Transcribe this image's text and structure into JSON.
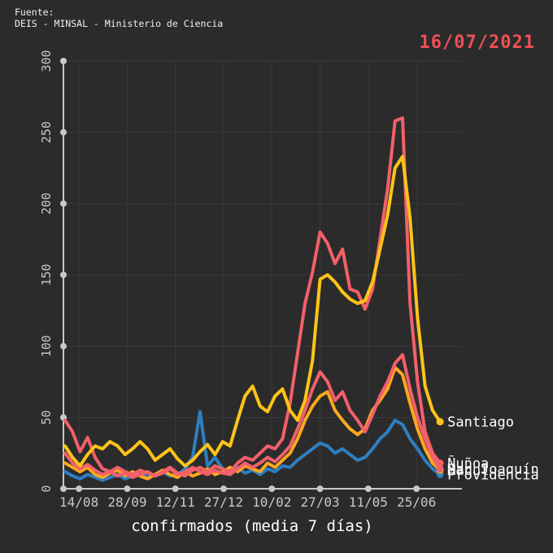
{
  "header": {
    "source_label": "Fuente:",
    "source_name": "DEIS - MINSAL - Ministerio de Ciencia",
    "date": "16/07/2021"
  },
  "colors": {
    "background": "#2b2b2b",
    "grid": "#3a3a3a",
    "axis": "#c8c8c8",
    "tick_text": "#c8c8c8",
    "date_text": "#ef4f55",
    "label_text": "#ffffff"
  },
  "chart_data": {
    "type": "line",
    "title": "",
    "xlabel": "confirmados (media 7 días)",
    "ylabel": "",
    "ylim": [
      0,
      300
    ],
    "y_ticks": [
      0,
      50,
      100,
      150,
      200,
      250,
      300
    ],
    "x_tick_labels": [
      "14/08",
      "28/09",
      "12/11",
      "27/12",
      "10/02",
      "27/03",
      "11/05",
      "25/06"
    ],
    "x_tick_days": [
      13,
      58,
      103,
      148,
      193,
      238,
      283,
      328
    ],
    "x_total_days": 350,
    "sampling_step_days": 7,
    "grid": "on",
    "legend_position": "end-of-line labels (right)",
    "series": [
      {
        "name": "Santiago",
        "color": "#ffc417",
        "values": [
          30,
          22,
          16,
          24,
          30,
          28,
          33,
          30,
          24,
          28,
          33,
          28,
          20,
          24,
          28,
          21,
          16,
          20,
          26,
          31,
          24,
          33,
          30,
          48,
          65,
          72,
          58,
          54,
          65,
          70,
          55,
          48,
          62,
          90,
          147,
          150,
          145,
          138,
          133,
          130,
          132,
          145,
          168,
          192,
          225,
          233,
          190,
          120,
          72,
          55,
          47
        ]
      },
      {
        "name": "Ñuñoa",
        "color": "#f2606a",
        "values": [
          48,
          40,
          26,
          36,
          22,
          14,
          12,
          15,
          12,
          10,
          13,
          11,
          9,
          12,
          15,
          11,
          9,
          13,
          15,
          12,
          16,
          14,
          12,
          18,
          22,
          20,
          25,
          30,
          28,
          35,
          60,
          95,
          130,
          152,
          180,
          172,
          158,
          168,
          140,
          138,
          126,
          140,
          175,
          210,
          258,
          260,
          130,
          75,
          40,
          25,
          18
        ]
      },
      {
        "name": "San Joaquín",
        "color": "#f2606a",
        "values": [
          25,
          18,
          14,
          17,
          13,
          10,
          12,
          9,
          11,
          8,
          10,
          12,
          9,
          11,
          14,
          10,
          12,
          15,
          12,
          10,
          13,
          11,
          10,
          14,
          18,
          15,
          18,
          22,
          19,
          24,
          30,
          42,
          55,
          70,
          82,
          75,
          62,
          68,
          55,
          48,
          40,
          52,
          65,
          75,
          88,
          94,
          70,
          50,
          35,
          22,
          14
        ]
      },
      {
        "name": "Macul",
        "color": "#ffa81e",
        "values": [
          18,
          15,
          12,
          15,
          10,
          8,
          11,
          13,
          9,
          12,
          9,
          7,
          10,
          13,
          10,
          8,
          12,
          9,
          11,
          14,
          10,
          12,
          15,
          12,
          16,
          14,
          12,
          18,
          15,
          20,
          25,
          35,
          48,
          58,
          65,
          68,
          55,
          48,
          42,
          38,
          42,
          55,
          62,
          70,
          85,
          80,
          60,
          42,
          28,
          18,
          13
        ]
      },
      {
        "name": "Providencia",
        "color": "#2d7fc1",
        "values": [
          12,
          9,
          7,
          10,
          8,
          6,
          8,
          10,
          7,
          9,
          11,
          8,
          10,
          12,
          9,
          10,
          14,
          22,
          54,
          16,
          22,
          14,
          12,
          15,
          11,
          13,
          10,
          14,
          12,
          16,
          15,
          20,
          24,
          28,
          32,
          30,
          25,
          28,
          24,
          20,
          22,
          28,
          35,
          40,
          48,
          45,
          35,
          28,
          20,
          14,
          10
        ]
      }
    ]
  }
}
